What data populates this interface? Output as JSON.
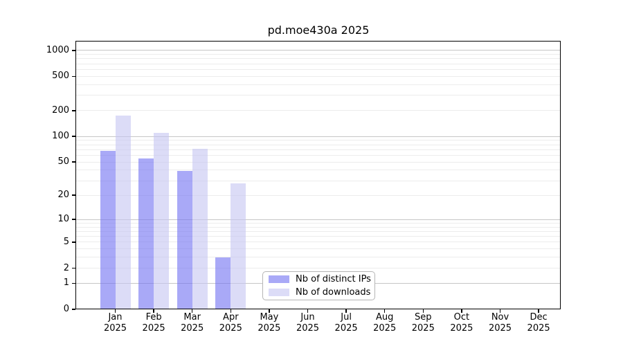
{
  "chart_data": {
    "type": "bar",
    "title": "pd.moe430a 2025",
    "categories": [
      "Jan 2025",
      "Feb 2025",
      "Mar 2025",
      "Apr 2025",
      "May 2025",
      "Jun 2025",
      "Jul 2025",
      "Aug 2025",
      "Sep 2025",
      "Oct 2025",
      "Nov 2025",
      "Dec 2025"
    ],
    "x_tick_labels": [
      {
        "line1": "Jan",
        "line2": "2025"
      },
      {
        "line1": "Feb",
        "line2": "2025"
      },
      {
        "line1": "Mar",
        "line2": "2025"
      },
      {
        "line1": "Apr",
        "line2": "2025"
      },
      {
        "line1": "May",
        "line2": "2025"
      },
      {
        "line1": "Jun",
        "line2": "2025"
      },
      {
        "line1": "Jul",
        "line2": "2025"
      },
      {
        "line1": "Aug",
        "line2": "2025"
      },
      {
        "line1": "Sep",
        "line2": "2025"
      },
      {
        "line1": "Oct",
        "line2": "2025"
      },
      {
        "line1": "Nov",
        "line2": "2025"
      },
      {
        "line1": "Dec",
        "line2": "2025"
      }
    ],
    "series": [
      {
        "name": "Nb of distinct IPs",
        "color": "#a9a9f7",
        "fill": "rgba(112,112,242,0.60)",
        "values": [
          68,
          55,
          39,
          3,
          0,
          0,
          0,
          0,
          0,
          0,
          0,
          0
        ]
      },
      {
        "name": "Nb of downloads",
        "color": "#dcdcf6",
        "fill": "rgba(197,197,242,0.60)",
        "values": [
          175,
          110,
          71,
          28,
          0,
          0,
          0,
          0,
          0,
          0,
          0,
          0
        ]
      }
    ],
    "yscale": "log1p",
    "yticks": [
      0,
      1,
      2,
      5,
      10,
      20,
      50,
      100,
      200,
      500,
      1000
    ],
    "ylim": [
      0,
      1270
    ],
    "xlabel": "",
    "ylabel": "",
    "grid": "horizontal",
    "grid_major_values": [
      1,
      10,
      100,
      1000
    ],
    "grid_major_color": "#c6c6c6",
    "grid_minor_color": "#ececec",
    "legend_position": "lower-center",
    "spine_color": "#000000",
    "text_color": "#000000",
    "background_color": "#ffffff"
  }
}
